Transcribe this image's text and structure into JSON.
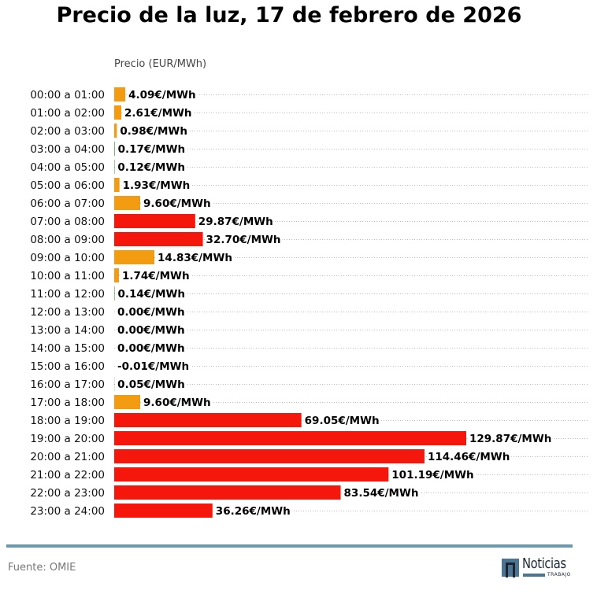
{
  "chart_data": {
    "type": "bar",
    "orientation": "horizontal",
    "title": "Precio de la luz, 17 de febrero de 2026",
    "xlabel": "Precio (EUR/MWh)",
    "ylabel": "",
    "categories": [
      "00:00 a 01:00",
      "01:00 a 02:00",
      "02:00 a 03:00",
      "03:00 a 04:00",
      "04:00 a 05:00",
      "05:00 a 06:00",
      "06:00 a 07:00",
      "07:00 a 08:00",
      "08:00 a 09:00",
      "09:00 a 10:00",
      "10:00 a 11:00",
      "11:00 a 12:00",
      "12:00 a 13:00",
      "13:00 a 14:00",
      "14:00 a 15:00",
      "15:00 a 16:00",
      "16:00 a 17:00",
      "17:00 a 18:00",
      "18:00 a 19:00",
      "19:00 a 20:00",
      "20:00 a 21:00",
      "21:00 a 22:00",
      "22:00 a 23:00",
      "23:00 a 24:00"
    ],
    "values": [
      4.09,
      2.61,
      0.98,
      0.17,
      0.12,
      1.93,
      9.6,
      29.87,
      32.7,
      14.83,
      1.74,
      0.14,
      0.0,
      0.0,
      0.0,
      -0.01,
      0.05,
      9.6,
      69.05,
      129.87,
      114.46,
      101.19,
      83.54,
      36.26
    ],
    "data_labels": [
      "4.09€/MWh",
      "2.61€/MWh",
      "0.98€/MWh",
      "0.17€/MWh",
      "0.12€/MWh",
      "1.93€/MWh",
      "9.60€/MWh",
      "29.87€/MWh",
      "32.70€/MWh",
      "14.83€/MWh",
      "1.74€/MWh",
      "0.14€/MWh",
      "0.00€/MWh",
      "0.00€/MWh",
      "0.00€/MWh",
      "-0.01€/MWh",
      "0.05€/MWh",
      "9.60€/MWh",
      "69.05€/MWh",
      "129.87€/MWh",
      "114.46€/MWh",
      "101.19€/MWh",
      "83.54€/MWh",
      "36.26€/MWh"
    ],
    "bar_colors": [
      "#f39c12",
      "#f39c12",
      "#f39c12",
      "#2e7d32",
      "#2e7d32",
      "#f39c12",
      "#f39c12",
      "#f5160c",
      "#f5160c",
      "#f39c12",
      "#f39c12",
      "#2e7d32",
      "#2e7d32",
      "#2e7d32",
      "#2e7d32",
      "#2e7d32",
      "#2e7d32",
      "#f39c12",
      "#f5160c",
      "#f5160c",
      "#f5160c",
      "#f5160c",
      "#f5160c",
      "#f5160c"
    ],
    "xlim": [
      0,
      135
    ],
    "grid": true,
    "legend": "none"
  },
  "footer": {
    "source": "Fuente: OMIE",
    "logo_word": "Noticias",
    "logo_sub": "TRABAJO"
  },
  "colors": {
    "high": "#f5160c",
    "medium": "#f39c12",
    "low": "#2e7d32",
    "divider": "#6a98ad"
  }
}
